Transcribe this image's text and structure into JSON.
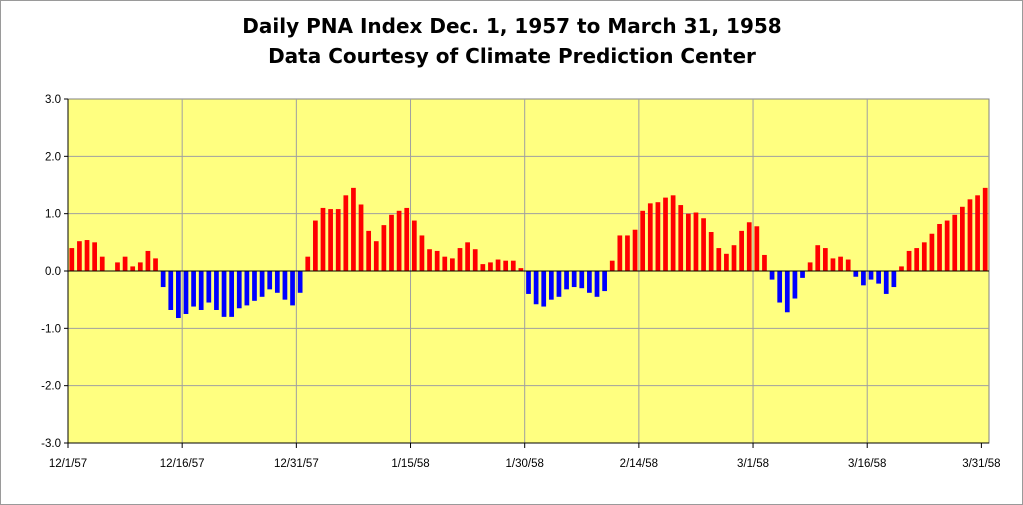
{
  "chart_data": {
    "type": "bar",
    "title": "Daily PNA Index Dec. 1, 1957 to March 31, 1958",
    "subtitle": "Data Courtesy of Climate Prediction Center",
    "xlabel": "",
    "ylabel": "",
    "ylim": [
      -3.0,
      3.0
    ],
    "y_ticks": [
      "3.0",
      "2.0",
      "1.0",
      "0.0",
      "-1.0",
      "-2.0",
      "-3.0"
    ],
    "x_tick_labels": [
      "12/1/57",
      "12/16/57",
      "12/31/57",
      "1/15/58",
      "1/30/58",
      "2/14/58",
      "3/1/58",
      "3/16/58",
      "3/31/58"
    ],
    "grid": true,
    "colors": {
      "positive": "#ff0000",
      "negative": "#0000ff",
      "plot_background": "#ffff80"
    },
    "values": [
      0.4,
      0.52,
      0.54,
      0.5,
      0.25,
      0.0,
      0.15,
      0.25,
      0.08,
      0.15,
      0.35,
      0.22,
      -0.28,
      -0.68,
      -0.82,
      -0.75,
      -0.62,
      -0.68,
      -0.55,
      -0.68,
      -0.8,
      -0.8,
      -0.65,
      -0.6,
      -0.52,
      -0.45,
      -0.32,
      -0.38,
      -0.5,
      -0.6,
      -0.38,
      0.25,
      0.88,
      1.1,
      1.08,
      1.08,
      1.32,
      1.45,
      1.16,
      0.7,
      0.52,
      0.8,
      0.98,
      1.05,
      1.1,
      0.88,
      0.62,
      0.38,
      0.35,
      0.25,
      0.22,
      0.4,
      0.5,
      0.38,
      0.12,
      0.15,
      0.2,
      0.18,
      0.18,
      0.05,
      -0.4,
      -0.58,
      -0.62,
      -0.5,
      -0.45,
      -0.32,
      -0.28,
      -0.3,
      -0.38,
      -0.45,
      -0.35,
      0.18,
      0.62,
      0.62,
      0.72,
      1.05,
      1.18,
      1.2,
      1.28,
      1.32,
      1.15,
      1.0,
      1.02,
      0.92,
      0.68,
      0.4,
      0.3,
      0.45,
      0.7,
      0.85,
      0.78,
      0.28,
      -0.15,
      -0.55,
      -0.72,
      -0.48,
      -0.12,
      0.15,
      0.45,
      0.4,
      0.22,
      0.25,
      0.2,
      -0.1,
      -0.25,
      -0.15,
      -0.22,
      -0.4,
      -0.28,
      0.08,
      0.35,
      0.4,
      0.5,
      0.65,
      0.82,
      0.88,
      0.98,
      1.12,
      1.25,
      1.32,
      1.45
    ]
  }
}
